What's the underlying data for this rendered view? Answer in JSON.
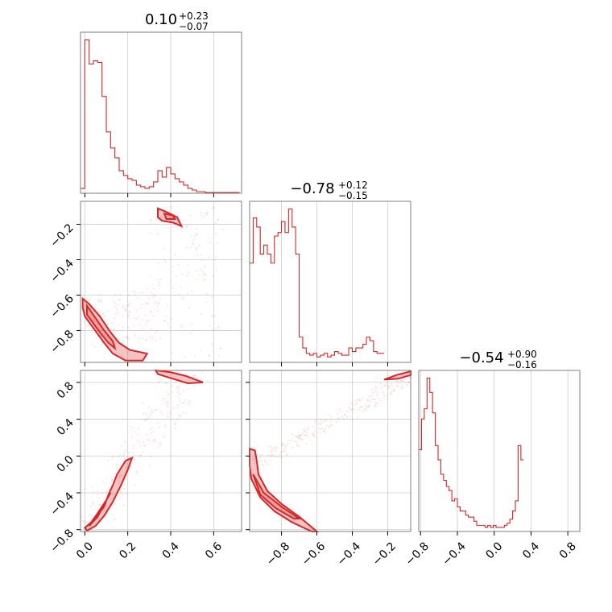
{
  "chart_data": {
    "type": "scatter",
    "color": "#d62728",
    "titles": [
      {
        "value": "0.10",
        "plus": "+0.23",
        "minus": "−0.07"
      },
      {
        "value": "−0.78",
        "plus": "+0.12",
        "minus": "−0.15"
      },
      {
        "value": "−0.54",
        "plus": "+0.90",
        "minus": "−0.16"
      }
    ],
    "params": [
      {
        "range": [
          -0.02,
          0.73
        ],
        "ticks": [
          "0.0",
          "0.2",
          "0.4",
          "0.6"
        ],
        "tick_values": [
          0.0,
          0.2,
          0.4,
          0.6
        ]
      },
      {
        "range": [
          -0.98,
          -0.07
        ],
        "ticks": [
          "−0.8",
          "−0.6",
          "−0.4",
          "−0.2"
        ],
        "tick_values": [
          -0.8,
          -0.6,
          -0.4,
          -0.2
        ]
      },
      {
        "range": [
          -0.82,
          0.93
        ],
        "ticks": [
          "−0.8",
          "−0.4",
          "0.0",
          "0.4",
          "0.8"
        ],
        "tick_values": [
          -0.8,
          -0.4,
          0.0,
          0.4,
          0.8
        ]
      }
    ],
    "y_ticks_row1": [
      "−0.8",
      "−0.6",
      "−0.4",
      "−0.2"
    ],
    "y_ticks_row2": [
      "−0.8",
      "−0.4",
      "0.0",
      "0.4",
      "0.8"
    ],
    "hist1": {
      "edges_start": -0.02,
      "bin_width": 0.02,
      "values": [
        3,
        95,
        80,
        82,
        81,
        60,
        38,
        28,
        22,
        14,
        11,
        9,
        8,
        5,
        4,
        3,
        4,
        7,
        14,
        10,
        16,
        12,
        9,
        7,
        5,
        3,
        2,
        1,
        1,
        0.5,
        0.5,
        0.5,
        0.5,
        0.5,
        0.5,
        0.5,
        0.5
      ]
    },
    "hist2": {
      "edges_start": -0.98,
      "bin_width": 0.02,
      "values": [
        55,
        80,
        75,
        60,
        65,
        60,
        55,
        70,
        72,
        78,
        72,
        85,
        75,
        60,
        14,
        8,
        5,
        4,
        5,
        3,
        4,
        5,
        3,
        4,
        6,
        5,
        4,
        4,
        8,
        6,
        8,
        8,
        10,
        14,
        12,
        6,
        5,
        5
      ]
    },
    "hist3": {
      "edges_start": -0.82,
      "bin_width": 0.03,
      "values": [
        40,
        55,
        60,
        75,
        68,
        58,
        42,
        35,
        28,
        25,
        22,
        20,
        15,
        16,
        12,
        10,
        10,
        8,
        7,
        7,
        5,
        3,
        3,
        3,
        2,
        3,
        2,
        3,
        2,
        2,
        2,
        3,
        4,
        6,
        10,
        15,
        42,
        35
      ]
    },
    "contours_12": [
      [
        [
          -0.01,
          -0.62
        ],
        [
          0.02,
          -0.65
        ],
        [
          0.07,
          -0.72
        ],
        [
          0.12,
          -0.81
        ],
        [
          0.16,
          -0.87
        ],
        [
          0.21,
          -0.91
        ],
        [
          0.29,
          -0.93
        ],
        [
          0.27,
          -0.97
        ],
        [
          0.19,
          -0.97
        ],
        [
          0.13,
          -0.93
        ],
        [
          0.09,
          -0.87
        ],
        [
          0.06,
          -0.82
        ],
        [
          0.03,
          -0.77
        ],
        [
          0.0,
          -0.72
        ],
        [
          -0.01,
          -0.67
        ]
      ],
      [
        [
          0.01,
          -0.66
        ],
        [
          0.05,
          -0.73
        ],
        [
          0.09,
          -0.8
        ],
        [
          0.13,
          -0.86
        ],
        [
          0.14,
          -0.9
        ],
        [
          0.11,
          -0.87
        ],
        [
          0.07,
          -0.81
        ],
        [
          0.04,
          -0.76
        ],
        [
          0.01,
          -0.71
        ]
      ],
      [
        [
          0.34,
          -0.11
        ],
        [
          0.38,
          -0.13
        ],
        [
          0.43,
          -0.16
        ],
        [
          0.45,
          -0.21
        ],
        [
          0.41,
          -0.19
        ],
        [
          0.36,
          -0.18
        ],
        [
          0.34,
          -0.16
        ]
      ],
      [
        [
          0.37,
          -0.14
        ],
        [
          0.41,
          -0.15
        ],
        [
          0.42,
          -0.17
        ],
        [
          0.38,
          -0.17
        ]
      ]
    ],
    "contours_13": [
      [
        [
          0.0,
          -0.78
        ],
        [
          0.04,
          -0.7
        ],
        [
          0.09,
          -0.55
        ],
        [
          0.11,
          -0.42
        ],
        [
          0.13,
          -0.32
        ],
        [
          0.15,
          -0.2
        ],
        [
          0.19,
          -0.05
        ],
        [
          0.22,
          -0.02
        ],
        [
          0.2,
          -0.15
        ],
        [
          0.17,
          -0.31
        ],
        [
          0.13,
          -0.5
        ],
        [
          0.09,
          -0.65
        ],
        [
          0.05,
          -0.76
        ],
        [
          0.01,
          -0.81
        ]
      ],
      [
        [
          0.02,
          -0.76
        ],
        [
          0.06,
          -0.66
        ],
        [
          0.09,
          -0.52
        ],
        [
          0.12,
          -0.4
        ],
        [
          0.1,
          -0.48
        ],
        [
          0.06,
          -0.62
        ],
        [
          0.03,
          -0.72
        ]
      ],
      [
        [
          0.33,
          0.93
        ],
        [
          0.4,
          0.91
        ],
        [
          0.47,
          0.87
        ],
        [
          0.55,
          0.8
        ],
        [
          0.48,
          0.79
        ],
        [
          0.41,
          0.84
        ],
        [
          0.34,
          0.89
        ]
      ]
    ],
    "contours_23": [
      [
        [
          -0.98,
          0.08
        ],
        [
          -0.95,
          0.06
        ],
        [
          -0.94,
          -0.05
        ],
        [
          -0.93,
          -0.2
        ],
        [
          -0.88,
          -0.38
        ],
        [
          -0.8,
          -0.52
        ],
        [
          -0.7,
          -0.66
        ],
        [
          -0.6,
          -0.82
        ],
        [
          -0.63,
          -0.82
        ],
        [
          -0.74,
          -0.72
        ],
        [
          -0.84,
          -0.6
        ],
        [
          -0.92,
          -0.45
        ],
        [
          -0.97,
          -0.25
        ],
        [
          -0.98,
          -0.1
        ]
      ],
      [
        [
          -0.96,
          -0.2
        ],
        [
          -0.9,
          -0.4
        ],
        [
          -0.8,
          -0.55
        ],
        [
          -0.7,
          -0.68
        ],
        [
          -0.73,
          -0.68
        ],
        [
          -0.83,
          -0.57
        ],
        [
          -0.92,
          -0.42
        ]
      ],
      [
        [
          -0.22,
          0.83
        ],
        [
          -0.15,
          0.88
        ],
        [
          -0.07,
          0.92
        ],
        [
          -0.07,
          0.88
        ],
        [
          -0.14,
          0.84
        ]
      ]
    ]
  }
}
